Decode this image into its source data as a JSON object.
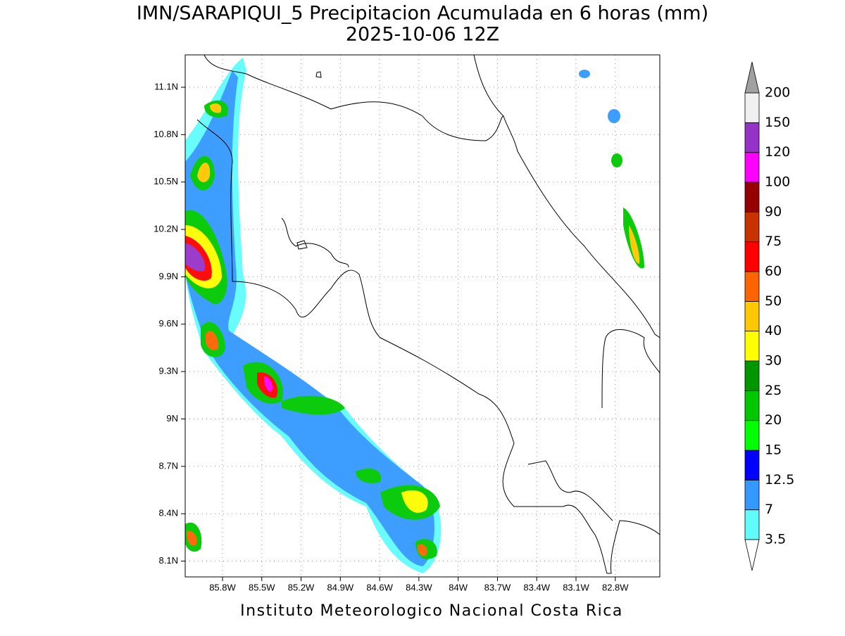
{
  "map": {
    "title": "IMN/SARAPIQUI_5 Precipitacion Acumulada en 6 horas (mm)",
    "subtitle": "2025-10-06 12Z",
    "footer": "Instituto Meteorologico Nacional Costa Rica",
    "xlim": [
      -86.085,
      -82.46
    ],
    "ylim": [
      8.0,
      11.305
    ],
    "xticks": [
      {
        "value": -85.8,
        "label": "85.8W"
      },
      {
        "value": -85.5,
        "label": "85.5W"
      },
      {
        "value": -85.2,
        "label": "85.2W"
      },
      {
        "value": -84.9,
        "label": "84.9W"
      },
      {
        "value": -84.6,
        "label": "84.6W"
      },
      {
        "value": -84.3,
        "label": "84.3W"
      },
      {
        "value": -84.0,
        "label": "84W"
      },
      {
        "value": -83.7,
        "label": "83.7W"
      },
      {
        "value": -83.4,
        "label": "83.4W"
      },
      {
        "value": -83.1,
        "label": "83.1W"
      },
      {
        "value": -82.8,
        "label": "82.8W"
      }
    ],
    "yticks": [
      {
        "value": 8.1,
        "label": "8.1N"
      },
      {
        "value": 8.4,
        "label": "8.4N"
      },
      {
        "value": 8.7,
        "label": "8.7N"
      },
      {
        "value": 9.0,
        "label": "9N"
      },
      {
        "value": 9.3,
        "label": "9.3N"
      },
      {
        "value": 9.6,
        "label": "9.6N"
      },
      {
        "value": 9.9,
        "label": "9.9N"
      },
      {
        "value": 10.2,
        "label": "10.2N"
      },
      {
        "value": 10.5,
        "label": "10.5N"
      },
      {
        "value": 10.8,
        "label": "10.8N"
      },
      {
        "value": 11.1,
        "label": "11.1N"
      }
    ],
    "grid": true,
    "colorbar": {
      "levels": [
        3.5,
        7,
        12.5,
        15,
        20,
        25,
        30,
        40,
        50,
        60,
        75,
        90,
        100,
        120,
        150,
        200
      ],
      "colors": [
        "#60fcfc",
        "#3399ff",
        "#0000ff",
        "#00ff00",
        "#00c800",
        "#009600",
        "#ffff00",
        "#ffc800",
        "#ff6400",
        "#ff0000",
        "#c83200",
        "#960000",
        "#ff00ff",
        "#9632c8",
        "#f0f0f0"
      ],
      "under_color": "#ffffff",
      "over_color": "#a0a0a0"
    }
  }
}
